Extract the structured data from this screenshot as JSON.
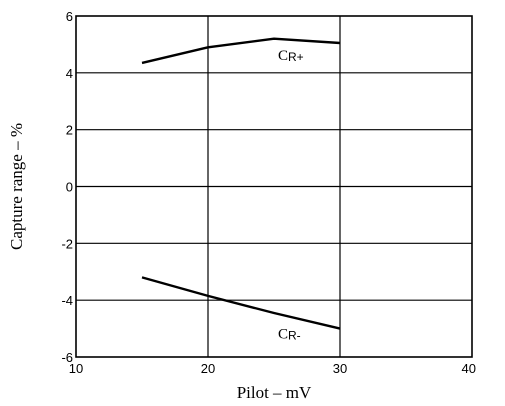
{
  "chart_data": {
    "type": "line",
    "title": "",
    "xlabel": "Pilot – mV",
    "ylabel": "Capture range – %",
    "xlim": [
      10,
      40
    ],
    "ylim": [
      -6,
      6
    ],
    "x_ticks": [
      "10",
      "20",
      "30",
      "40"
    ],
    "y_ticks": [
      "6",
      "4",
      "2",
      "0",
      "-2",
      "-4",
      "-6"
    ],
    "grid": true,
    "legend": "none",
    "series": [
      {
        "label_main": "C",
        "label_sub": "R+",
        "x": [
          15,
          20,
          25,
          30
        ],
        "y": [
          4.35,
          4.9,
          5.2,
          5.05
        ]
      },
      {
        "label_main": "C",
        "label_sub": "R-",
        "x": [
          15,
          20,
          25,
          30
        ],
        "y": [
          -3.2,
          -3.85,
          -4.45,
          -5.0
        ]
      }
    ],
    "colors": {
      "line": "#000000",
      "grid": "#000000"
    }
  }
}
